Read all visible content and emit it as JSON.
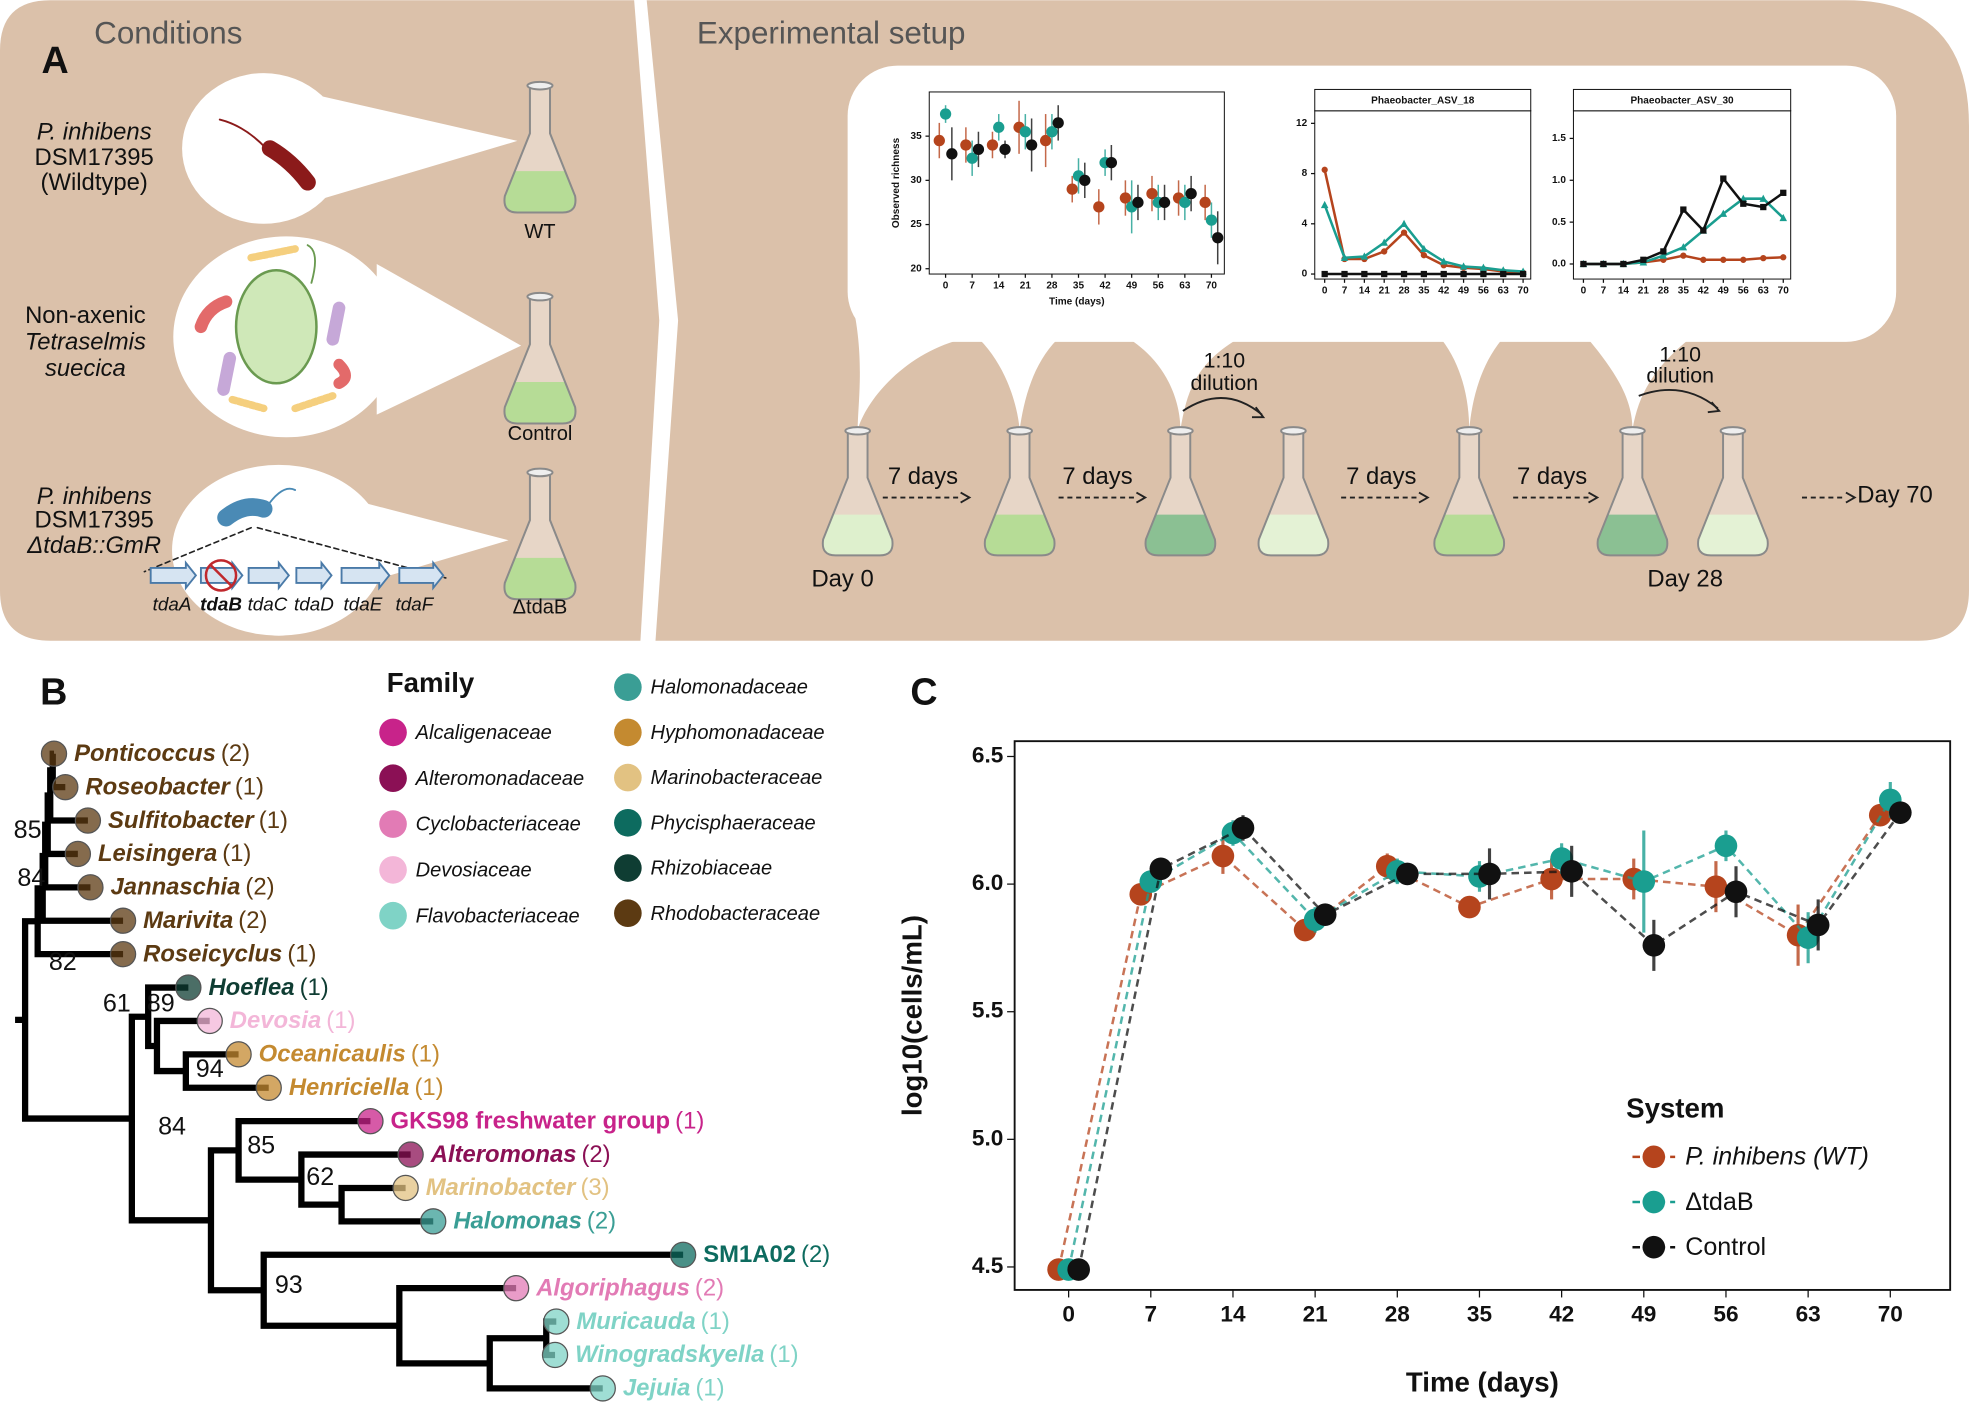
{
  "panel_a": {
    "label": "A",
    "conditions_title": "Conditions",
    "setup_title": "Experimental setup",
    "wildtype": [
      "P. inhibens",
      "DSM17395",
      "(Wildtype)"
    ],
    "algae": [
      "Non-axenic",
      "Tetraselmis",
      "suecica"
    ],
    "mutant": [
      "P. inhibens",
      "DSM17395",
      "ΔtdaB::GmR"
    ],
    "genes": [
      "tdaA",
      "tdaB",
      "tdaC",
      "tdaD",
      "tdaE",
      "tdaF"
    ],
    "flasks": [
      "WT",
      "Control",
      "ΔtdaB"
    ],
    "intervals": [
      "7 days",
      "7 days",
      "7 days",
      "7 days"
    ],
    "dilutions": [
      [
        "1:10",
        "dilution"
      ],
      [
        "1:10",
        "dilution"
      ]
    ],
    "days": [
      "Day 0",
      "Day 28",
      "Day 70"
    ]
  },
  "panel_b": {
    "label": "B",
    "legend_title": "Family",
    "families": [
      {
        "name": "Alcaligenaceae",
        "color": "#c8238a"
      },
      {
        "name": "Alteromonadaceae",
        "color": "#8b1055"
      },
      {
        "name": "Cyclobacteriaceae",
        "color": "#e27bb5"
      },
      {
        "name": "Devosiaceae",
        "color": "#f3b6d8"
      },
      {
        "name": "Flavobacteriaceae",
        "color": "#7fd3c6"
      },
      {
        "name": "Halomonadaceae",
        "color": "#3a9e95"
      },
      {
        "name": "Hyphomonadaceae",
        "color": "#c48a30"
      },
      {
        "name": "Marinobacteraceae",
        "color": "#e2c282"
      },
      {
        "name": "Phycisphaeraceae",
        "color": "#0d6b5f"
      },
      {
        "name": "Rhizobiaceae",
        "color": "#0f3d33"
      },
      {
        "name": "Rhodobacteraceae",
        "color": "#5c3a12"
      }
    ],
    "leaves": [
      {
        "name": "Ponticoccus",
        "count": "(2)",
        "family": "Rhodobacteraceae",
        "italic": true
      },
      {
        "name": "Roseobacter",
        "count": "(1)",
        "family": "Rhodobacteraceae",
        "italic": true
      },
      {
        "name": "Sulfitobacter",
        "count": "(1)",
        "family": "Rhodobacteraceae",
        "italic": true
      },
      {
        "name": "Leisingera",
        "count": "(1)",
        "family": "Rhodobacteraceae",
        "italic": true
      },
      {
        "name": "Jannaschia",
        "count": "(2)",
        "family": "Rhodobacteraceae",
        "italic": true
      },
      {
        "name": "Marivita",
        "count": "(2)",
        "family": "Rhodobacteraceae",
        "italic": true
      },
      {
        "name": "Roseicyclus",
        "count": "(1)",
        "family": "Rhodobacteraceae",
        "italic": true
      },
      {
        "name": "Hoeflea",
        "count": "(1)",
        "family": "Rhizobiaceae",
        "italic": true
      },
      {
        "name": "Devosia",
        "count": "(1)",
        "family": "Devosiaceae",
        "italic": true
      },
      {
        "name": "Oceanicaulis",
        "count": "(1)",
        "family": "Hyphomonadaceae",
        "italic": true
      },
      {
        "name": "Henriciella",
        "count": "(1)",
        "family": "Hyphomonadaceae",
        "italic": true
      },
      {
        "name": "GKS98 freshwater group",
        "count": "(1)",
        "family": "Alcaligenaceae",
        "italic": false
      },
      {
        "name": "Alteromonas",
        "count": "(2)",
        "family": "Alteromonadaceae",
        "italic": true
      },
      {
        "name": "Marinobacter",
        "count": "(3)",
        "family": "Marinobacteraceae",
        "italic": true
      },
      {
        "name": "Halomonas",
        "count": "(2)",
        "family": "Halomonadaceae",
        "italic": true
      },
      {
        "name": "SM1A02",
        "count": "(2)",
        "family": "Phycisphaeraceae",
        "italic": false
      },
      {
        "name": "Algoriphagus",
        "count": "(2)",
        "family": "Cyclobacteriaceae",
        "italic": true
      },
      {
        "name": "Muricauda",
        "count": "(1)",
        "family": "Flavobacteriaceae",
        "italic": true
      },
      {
        "name": "Winogradskyella",
        "count": "(1)",
        "family": "Flavobacteriaceae",
        "italic": true
      },
      {
        "name": "Jejuia",
        "count": "(1)",
        "family": "Flavobacteriaceae",
        "italic": true
      }
    ],
    "bootstrap": [
      85,
      84,
      82,
      61,
      89,
      94,
      84,
      85,
      62,
      93
    ]
  },
  "chart_data": [
    {
      "type": "scatter",
      "xlabel": "Time (days)",
      "ylabel": "Observed richness",
      "x": [
        0,
        7,
        14,
        21,
        28,
        35,
        42,
        49,
        56,
        63,
        70
      ],
      "xlim": [
        -4.3,
        73.4
      ],
      "xticks": [
        0,
        7,
        14,
        21,
        28,
        35,
        42,
        49,
        56,
        63,
        70
      ],
      "ylim": [
        19.4,
        40
      ],
      "yticks": [
        20,
        25,
        30,
        35
      ],
      "series": [
        {
          "color": "#b5441d",
          "marker": "circle",
          "values": [
            34.5,
            34,
            34,
            36,
            34.5,
            29,
            27,
            28,
            28.5,
            28,
            27.5
          ],
          "errors": [
            2,
            2,
            1.5,
            3,
            3,
            1.5,
            2,
            2,
            2,
            2,
            2
          ]
        },
        {
          "color": "#1a9e90",
          "marker": "circle",
          "values": [
            37.5,
            32.5,
            36,
            35.5,
            35.5,
            30.5,
            32,
            27,
            27.5,
            27.5,
            25.5
          ],
          "errors": [
            1,
            2,
            1.5,
            2,
            2,
            2,
            1.5,
            3,
            2,
            2,
            2
          ]
        },
        {
          "color": "#111111",
          "marker": "circle",
          "values": [
            33,
            33.5,
            33.5,
            34,
            36.5,
            30,
            32,
            27.5,
            27.5,
            28.5,
            23.5
          ],
          "errors": [
            3,
            2,
            1,
            3,
            2,
            2,
            2,
            2,
            2,
            2,
            3
          ]
        }
      ]
    },
    {
      "type": "line",
      "title": "Phaeobacter_ASV_18",
      "x": [
        0,
        7,
        14,
        21,
        28,
        35,
        42,
        49,
        56,
        63,
        70
      ],
      "xlim": [
        -3.5,
        72.7
      ],
      "xticks": [
        0,
        7,
        14,
        21,
        28,
        35,
        42,
        49,
        56,
        63,
        70
      ],
      "ylim": [
        -0.4,
        13
      ],
      "yticks": [
        0,
        4,
        8,
        12
      ],
      "series": [
        {
          "color": "#b5441d",
          "marker": "circle",
          "values": [
            8.3,
            1.2,
            1.2,
            1.8,
            3.3,
            1.5,
            0.7,
            0.5,
            0.4,
            0.2,
            0.1
          ]
        },
        {
          "color": "#1a9e90",
          "marker": "triangle",
          "values": [
            5.5,
            1.3,
            1.4,
            2.5,
            4.0,
            2.0,
            1.0,
            0.6,
            0.5,
            0.3,
            0.2
          ]
        },
        {
          "color": "#111111",
          "marker": "square",
          "values": [
            0,
            0,
            0,
            0,
            0,
            0,
            0,
            0,
            0,
            0,
            0
          ]
        }
      ]
    },
    {
      "type": "line",
      "title": "Phaeobacter_ASV_30",
      "x": [
        0,
        7,
        14,
        21,
        28,
        35,
        42,
        49,
        56,
        63,
        70
      ],
      "xlim": [
        -3.5,
        72.6
      ],
      "xticks": [
        0,
        7,
        14,
        21,
        28,
        35,
        42,
        49,
        56,
        63,
        70
      ],
      "ylim": [
        -0.18,
        1.83
      ],
      "yticks": [
        {
          "value": 0,
          "label": "0.0"
        },
        0.5,
        {
          "value": 1,
          "label": "1.0"
        },
        1.5
      ],
      "series": [
        {
          "color": "#b5441d",
          "marker": "circle",
          "values": [
            0,
            0,
            0,
            0.02,
            0.05,
            0.1,
            0.05,
            0.05,
            0.05,
            0.07,
            0.08
          ]
        },
        {
          "color": "#1a9e90",
          "marker": "triangle",
          "values": [
            0,
            0,
            0,
            0.02,
            0.1,
            0.2,
            0.4,
            0.6,
            0.78,
            0.78,
            0.55
          ]
        },
        {
          "color": "#111111",
          "marker": "square",
          "values": [
            0,
            0,
            0,
            0.05,
            0.15,
            0.65,
            0.4,
            1.02,
            0.72,
            0.68,
            0.85
          ]
        }
      ]
    },
    {
      "type": "line",
      "panel_label": "C",
      "xlabel": "Time (days)",
      "ylabel": "log10(cells/mL)",
      "legend_title": "System",
      "linestyle": "dashed",
      "x": [
        0,
        7,
        14,
        21,
        28,
        35,
        42,
        49,
        56,
        63,
        70
      ],
      "xlim": [
        -4.6,
        75.1
      ],
      "xticks": [
        0,
        7,
        14,
        21,
        28,
        35,
        42,
        49,
        56,
        63,
        70
      ],
      "ylim": [
        4.41,
        6.56
      ],
      "yticks": [
        4.5,
        {
          "value": 5,
          "label": "5.0"
        },
        5.5,
        {
          "value": 6,
          "label": "6.0"
        },
        6.5
      ],
      "series": [
        {
          "name": "P. inhibens (WT)",
          "color": "#b5441d",
          "marker": "circle",
          "values": [
            4.49,
            5.96,
            6.11,
            5.82,
            6.07,
            5.91,
            6.02,
            6.02,
            5.99,
            5.8,
            6.27
          ],
          "errors": [
            0,
            0.03,
            0.07,
            0.03,
            0.05,
            0.04,
            0.08,
            0.08,
            0.1,
            0.12,
            0.03
          ]
        },
        {
          "name": "ΔtdaB",
          "color": "#1a9e90",
          "marker": "circle",
          "values": [
            4.49,
            6.01,
            6.2,
            5.86,
            6.05,
            6.03,
            6.1,
            6.01,
            6.15,
            5.79,
            6.33
          ],
          "errors": [
            0,
            0.03,
            0.05,
            0.05,
            0.05,
            0.06,
            0.06,
            0.2,
            0.06,
            0.1,
            0.07
          ]
        },
        {
          "name": "Control",
          "color": "#111111",
          "marker": "circle",
          "values": [
            4.49,
            6.06,
            6.22,
            5.88,
            6.04,
            6.04,
            6.05,
            5.76,
            5.97,
            5.84,
            6.28
          ],
          "errors": [
            0,
            0.02,
            0.05,
            0.04,
            0.03,
            0.1,
            0.1,
            0.1,
            0.1,
            0.1,
            0.04
          ]
        }
      ]
    }
  ]
}
